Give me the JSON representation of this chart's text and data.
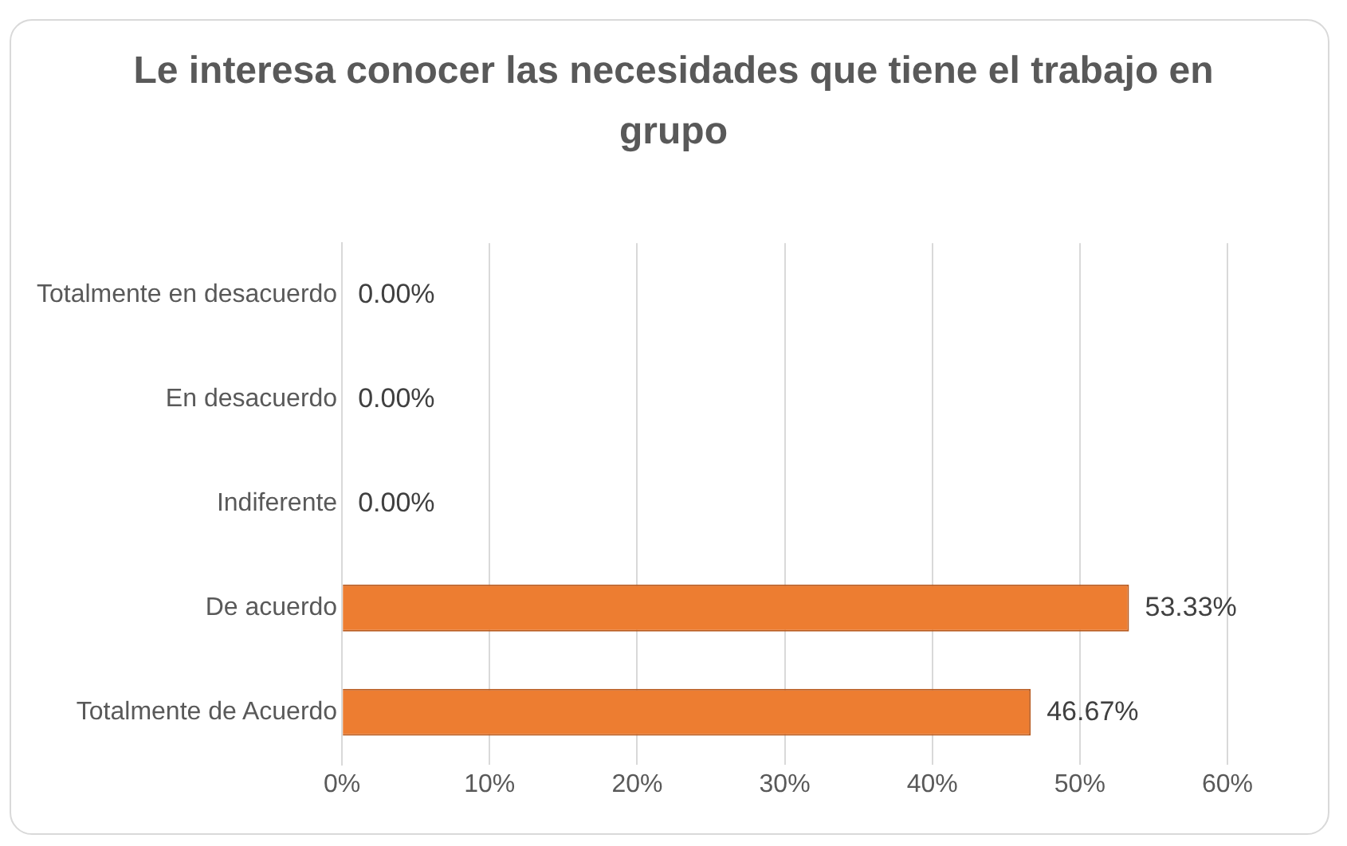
{
  "chart_data": {
    "type": "bar",
    "orientation": "horizontal",
    "title": "Le interesa conocer las necesidades que tiene el trabajo en grupo",
    "categories": [
      "Totalmente en desacuerdo",
      "En desacuerdo",
      "Indiferente",
      "De acuerdo",
      "Totalmente de Acuerdo"
    ],
    "values": [
      0,
      0,
      0,
      53.33,
      46.67
    ],
    "value_labels": [
      "0.00%",
      "0.00%",
      "0.00%",
      "53.33%",
      "46.67%"
    ],
    "color": "#ed7d31",
    "xlim": [
      0,
      60
    ],
    "xticks": [
      {
        "value": 0,
        "label": "0%"
      },
      {
        "value": 10,
        "label": "10%"
      },
      {
        "value": 20,
        "label": "20%"
      },
      {
        "value": 30,
        "label": "30%"
      },
      {
        "value": 40,
        "label": "40%"
      },
      {
        "value": 50,
        "label": "50%"
      },
      {
        "value": 60,
        "label": "60%"
      }
    ],
    "grid": "x"
  }
}
